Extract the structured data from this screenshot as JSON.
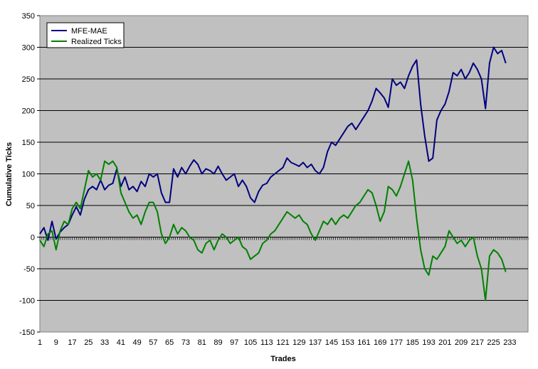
{
  "chart_data": {
    "type": "line",
    "title": "",
    "xlabel": "Trades",
    "ylabel": "Cumulative Ticks",
    "xlim": [
      1,
      242
    ],
    "ylim": [
      -150,
      350
    ],
    "y_ticks": [
      350,
      300,
      250,
      200,
      150,
      100,
      50,
      0,
      -50,
      -100,
      -150
    ],
    "x_ticks": [
      1,
      9,
      17,
      25,
      33,
      41,
      49,
      57,
      65,
      73,
      81,
      89,
      97,
      105,
      113,
      121,
      129,
      137,
      145,
      153,
      161,
      169,
      177,
      185,
      193,
      201,
      209,
      217,
      225,
      233
    ],
    "grid": "horizontal",
    "legend": "top-left",
    "plot_background": "#c0c0c0",
    "series": [
      {
        "name": "MFE-MAE",
        "color": "#000080",
        "points": [
          [
            1,
            5
          ],
          [
            3,
            15
          ],
          [
            5,
            -5
          ],
          [
            7,
            25
          ],
          [
            9,
            -3
          ],
          [
            11,
            8
          ],
          [
            13,
            15
          ],
          [
            15,
            20
          ],
          [
            17,
            35
          ],
          [
            19,
            48
          ],
          [
            21,
            35
          ],
          [
            23,
            60
          ],
          [
            25,
            75
          ],
          [
            27,
            80
          ],
          [
            29,
            75
          ],
          [
            31,
            90
          ],
          [
            33,
            75
          ],
          [
            35,
            82
          ],
          [
            37,
            85
          ],
          [
            39,
            108
          ],
          [
            41,
            80
          ],
          [
            43,
            95
          ],
          [
            45,
            75
          ],
          [
            47,
            80
          ],
          [
            49,
            72
          ],
          [
            51,
            88
          ],
          [
            53,
            80
          ],
          [
            55,
            100
          ],
          [
            57,
            95
          ],
          [
            59,
            100
          ],
          [
            61,
            70
          ],
          [
            63,
            55
          ],
          [
            65,
            55
          ],
          [
            67,
            108
          ],
          [
            69,
            95
          ],
          [
            71,
            110
          ],
          [
            73,
            100
          ],
          [
            75,
            112
          ],
          [
            77,
            122
          ],
          [
            79,
            115
          ],
          [
            81,
            100
          ],
          [
            83,
            108
          ],
          [
            85,
            105
          ],
          [
            87,
            100
          ],
          [
            89,
            112
          ],
          [
            91,
            100
          ],
          [
            93,
            90
          ],
          [
            95,
            95
          ],
          [
            97,
            100
          ],
          [
            99,
            80
          ],
          [
            101,
            90
          ],
          [
            103,
            80
          ],
          [
            105,
            62
          ],
          [
            107,
            55
          ],
          [
            109,
            72
          ],
          [
            111,
            82
          ],
          [
            113,
            85
          ],
          [
            115,
            95
          ],
          [
            117,
            100
          ],
          [
            119,
            105
          ],
          [
            121,
            110
          ],
          [
            123,
            125
          ],
          [
            125,
            118
          ],
          [
            127,
            115
          ],
          [
            129,
            112
          ],
          [
            131,
            118
          ],
          [
            133,
            110
          ],
          [
            135,
            115
          ],
          [
            137,
            105
          ],
          [
            139,
            100
          ],
          [
            141,
            110
          ],
          [
            143,
            135
          ],
          [
            145,
            150
          ],
          [
            147,
            145
          ],
          [
            149,
            155
          ],
          [
            151,
            165
          ],
          [
            153,
            175
          ],
          [
            155,
            180
          ],
          [
            157,
            170
          ],
          [
            159,
            180
          ],
          [
            161,
            190
          ],
          [
            163,
            200
          ],
          [
            165,
            215
          ],
          [
            167,
            235
          ],
          [
            169,
            228
          ],
          [
            171,
            220
          ],
          [
            173,
            205
          ],
          [
            175,
            250
          ],
          [
            177,
            240
          ],
          [
            179,
            245
          ],
          [
            181,
            235
          ],
          [
            183,
            255
          ],
          [
            185,
            270
          ],
          [
            187,
            280
          ],
          [
            189,
            210
          ],
          [
            191,
            160
          ],
          [
            193,
            120
          ],
          [
            195,
            125
          ],
          [
            197,
            185
          ],
          [
            199,
            200
          ],
          [
            201,
            210
          ],
          [
            203,
            230
          ],
          [
            205,
            260
          ],
          [
            207,
            255
          ],
          [
            209,
            265
          ],
          [
            211,
            250
          ],
          [
            213,
            260
          ],
          [
            215,
            275
          ],
          [
            217,
            265
          ],
          [
            219,
            250
          ],
          [
            221,
            203
          ],
          [
            223,
            275
          ],
          [
            225,
            300
          ],
          [
            227,
            290
          ],
          [
            229,
            295
          ],
          [
            231,
            275
          ]
        ]
      },
      {
        "name": "Realized Ticks",
        "color": "#008000",
        "points": [
          [
            1,
            -5
          ],
          [
            3,
            -15
          ],
          [
            5,
            5
          ],
          [
            7,
            10
          ],
          [
            9,
            -20
          ],
          [
            11,
            10
          ],
          [
            13,
            25
          ],
          [
            15,
            20
          ],
          [
            17,
            45
          ],
          [
            19,
            55
          ],
          [
            21,
            45
          ],
          [
            23,
            75
          ],
          [
            25,
            105
          ],
          [
            27,
            95
          ],
          [
            29,
            100
          ],
          [
            31,
            90
          ],
          [
            33,
            120
          ],
          [
            35,
            115
          ],
          [
            37,
            120
          ],
          [
            39,
            110
          ],
          [
            41,
            70
          ],
          [
            43,
            55
          ],
          [
            45,
            40
          ],
          [
            47,
            30
          ],
          [
            49,
            35
          ],
          [
            51,
            20
          ],
          [
            53,
            40
          ],
          [
            55,
            55
          ],
          [
            57,
            55
          ],
          [
            59,
            40
          ],
          [
            61,
            5
          ],
          [
            63,
            -10
          ],
          [
            65,
            0
          ],
          [
            67,
            20
          ],
          [
            69,
            5
          ],
          [
            71,
            15
          ],
          [
            73,
            10
          ],
          [
            75,
            0
          ],
          [
            77,
            -5
          ],
          [
            79,
            -20
          ],
          [
            81,
            -25
          ],
          [
            83,
            -10
          ],
          [
            85,
            -5
          ],
          [
            87,
            -20
          ],
          [
            89,
            -5
          ],
          [
            91,
            5
          ],
          [
            93,
            0
          ],
          [
            95,
            -10
          ],
          [
            97,
            -5
          ],
          [
            99,
            0
          ],
          [
            101,
            -15
          ],
          [
            103,
            -20
          ],
          [
            105,
            -35
          ],
          [
            107,
            -30
          ],
          [
            109,
            -25
          ],
          [
            111,
            -10
          ],
          [
            113,
            -5
          ],
          [
            115,
            5
          ],
          [
            117,
            10
          ],
          [
            119,
            20
          ],
          [
            121,
            30
          ],
          [
            123,
            40
          ],
          [
            125,
            35
          ],
          [
            127,
            30
          ],
          [
            129,
            35
          ],
          [
            131,
            25
          ],
          [
            133,
            20
          ],
          [
            135,
            5
          ],
          [
            137,
            -5
          ],
          [
            139,
            10
          ],
          [
            141,
            25
          ],
          [
            143,
            20
          ],
          [
            145,
            30
          ],
          [
            147,
            20
          ],
          [
            149,
            30
          ],
          [
            151,
            35
          ],
          [
            153,
            30
          ],
          [
            155,
            40
          ],
          [
            157,
            50
          ],
          [
            159,
            55
          ],
          [
            161,
            65
          ],
          [
            163,
            75
          ],
          [
            165,
            70
          ],
          [
            167,
            50
          ],
          [
            169,
            25
          ],
          [
            171,
            40
          ],
          [
            173,
            80
          ],
          [
            175,
            75
          ],
          [
            177,
            65
          ],
          [
            179,
            80
          ],
          [
            181,
            100
          ],
          [
            183,
            120
          ],
          [
            185,
            90
          ],
          [
            187,
            30
          ],
          [
            189,
            -20
          ],
          [
            191,
            -50
          ],
          [
            193,
            -60
          ],
          [
            195,
            -30
          ],
          [
            197,
            -35
          ],
          [
            199,
            -25
          ],
          [
            201,
            -15
          ],
          [
            203,
            10
          ],
          [
            205,
            0
          ],
          [
            207,
            -10
          ],
          [
            209,
            -5
          ],
          [
            211,
            -15
          ],
          [
            213,
            -5
          ],
          [
            215,
            0
          ],
          [
            217,
            -30
          ],
          [
            219,
            -50
          ],
          [
            221,
            -100
          ],
          [
            223,
            -30
          ],
          [
            225,
            -20
          ],
          [
            227,
            -25
          ],
          [
            229,
            -35
          ],
          [
            231,
            -55
          ]
        ]
      }
    ]
  }
}
